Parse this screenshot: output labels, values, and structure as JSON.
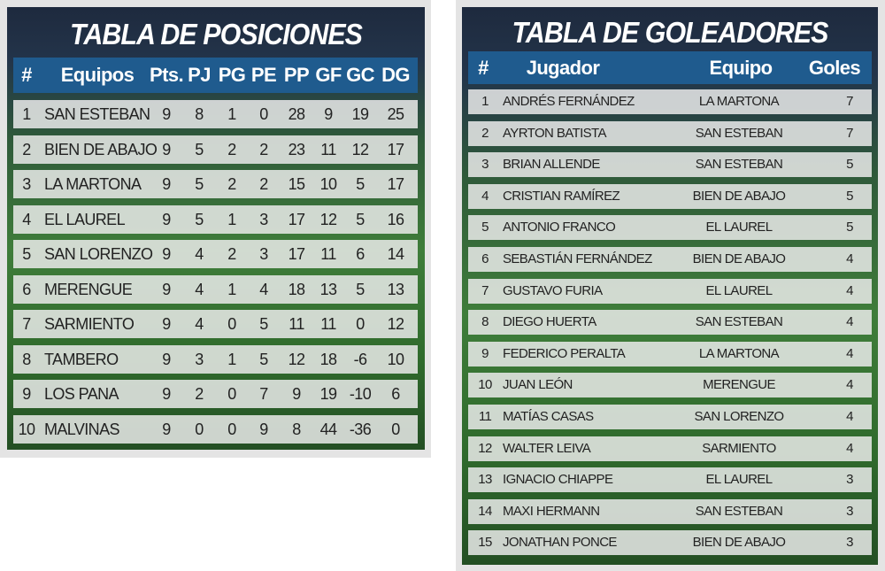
{
  "standings": {
    "title": "TABLA DE POSICIONES",
    "headers": [
      "#",
      "Equipos",
      "Pts.",
      "PJ",
      "PG",
      "PE",
      "PP",
      "GF",
      "GC",
      "DG"
    ],
    "rows": [
      [
        1,
        "SAN ESTEBAN",
        9,
        8,
        1,
        0,
        28,
        9,
        19,
        25
      ],
      [
        2,
        "BIEN DE ABAJO",
        9,
        5,
        2,
        2,
        23,
        11,
        12,
        17
      ],
      [
        3,
        "LA MARTONA",
        9,
        5,
        2,
        2,
        15,
        10,
        5,
        17
      ],
      [
        4,
        "EL LAUREL",
        9,
        5,
        1,
        3,
        17,
        12,
        5,
        16
      ],
      [
        5,
        "SAN LORENZO",
        9,
        4,
        2,
        3,
        17,
        11,
        6,
        14
      ],
      [
        6,
        "MERENGUE",
        9,
        4,
        1,
        4,
        18,
        13,
        5,
        13
      ],
      [
        7,
        "SARMIENTO",
        9,
        4,
        0,
        5,
        11,
        11,
        0,
        12
      ],
      [
        8,
        "TAMBERO",
        9,
        3,
        1,
        5,
        12,
        18,
        -6,
        10
      ],
      [
        9,
        "LOS PANA",
        9,
        2,
        0,
        7,
        9,
        19,
        -10,
        6
      ],
      [
        10,
        "MALVINAS",
        9,
        0,
        0,
        9,
        8,
        44,
        -36,
        0
      ]
    ]
  },
  "scorers": {
    "title": "TABLA DE GOLEADORES",
    "headers": [
      "#",
      "Jugador",
      "Equipo",
      "Goles"
    ],
    "rows": [
      [
        1,
        "ANDRÉS FERNÁNDEZ",
        "LA MARTONA",
        7
      ],
      [
        2,
        "AYRTON BATISTA",
        "SAN ESTEBAN",
        7
      ],
      [
        3,
        "BRIAN ALLENDE",
        "SAN ESTEBAN",
        5
      ],
      [
        4,
        "CRISTIAN RAMÍREZ",
        "BIEN DE ABAJO",
        5
      ],
      [
        5,
        "ANTONIO FRANCO",
        "EL LAUREL",
        5
      ],
      [
        6,
        "SEBASTIÁN FERNÁNDEZ",
        "BIEN DE ABAJO",
        4
      ],
      [
        7,
        "GUSTAVO FURIA",
        "EL LAUREL",
        4
      ],
      [
        8,
        "DIEGO HUERTA",
        "SAN ESTEBAN",
        4
      ],
      [
        9,
        "FEDERICO PERALTA",
        "LA MARTONA",
        4
      ],
      [
        10,
        "JUAN LEÓN",
        "MERENGUE",
        4
      ],
      [
        11,
        "MATÍAS CASAS",
        "SAN LORENZO",
        4
      ],
      [
        12,
        "WALTER LEIVA",
        "SARMIENTO",
        4
      ],
      [
        13,
        "IGNACIO CHIAPPE",
        "EL LAUREL",
        3
      ],
      [
        14,
        "MAXI HERMANN",
        "SAN ESTEBAN",
        3
      ],
      [
        15,
        "JONATHAN PONCE",
        "BIEN DE ABAJO",
        3
      ]
    ]
  }
}
